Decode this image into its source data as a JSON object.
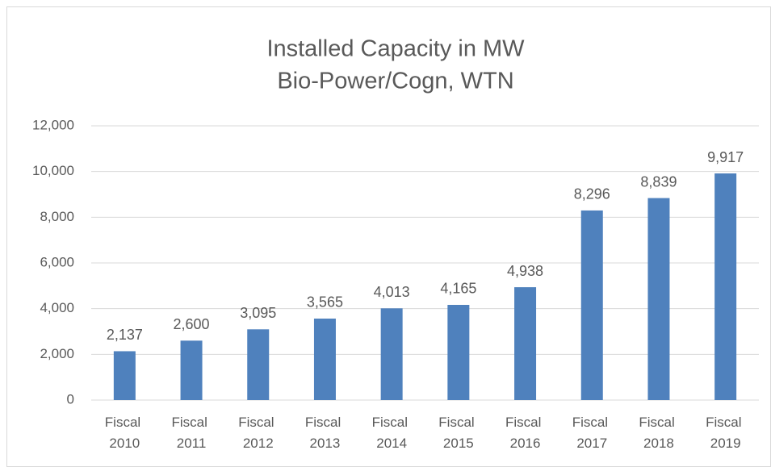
{
  "chart_data": {
    "type": "bar",
    "title": [
      "Installed Capacity in MW",
      "Bio-Power/Cogn, WTN"
    ],
    "categories": [
      "Fiscal 2010",
      "Fiscal 2011",
      "Fiscal 2012",
      "Fiscal 2013",
      "Fiscal 2014",
      "Fiscal 2015",
      "Fiscal 2016",
      "Fiscal 2017",
      "Fiscal 2018",
      "Fiscal 2019"
    ],
    "values": [
      2137,
      2600,
      3095,
      3565,
      4013,
      4165,
      4938,
      8296,
      8839,
      9917
    ],
    "value_labels": [
      "2,137",
      "2,600",
      "3,095",
      "3,565",
      "4,013",
      "4,165",
      "4,938",
      "8,296",
      "8,839",
      "9,917"
    ],
    "color": "#4f81bd",
    "ylim": [
      0,
      12000
    ],
    "yticks": [
      0,
      {
        "value": 2000,
        "label": "2,000"
      },
      {
        "value": 4000,
        "label": "4,000"
      },
      {
        "value": 6000,
        "label": "6,000"
      },
      {
        "value": 8000,
        "label": "8,000"
      },
      {
        "value": 10000,
        "label": "10,000"
      },
      {
        "value": 12000,
        "label": "12,000"
      }
    ],
    "grid": true
  }
}
